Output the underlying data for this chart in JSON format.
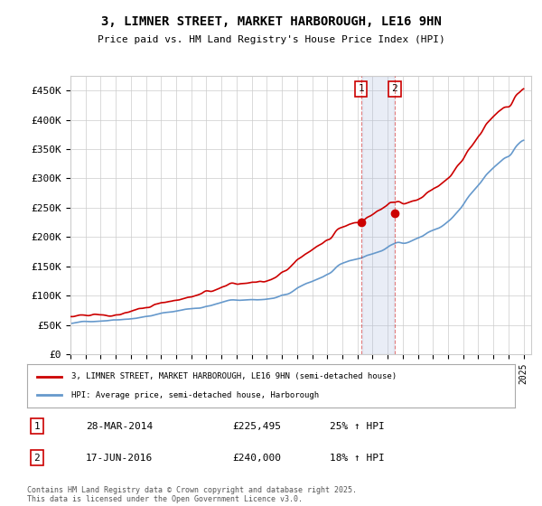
{
  "title_line1": "3, LIMNER STREET, MARKET HARBOROUGH, LE16 9HN",
  "title_line2": "Price paid vs. HM Land Registry's House Price Index (HPI)",
  "ylabel": "",
  "xlabel": "",
  "ylim": [
    0,
    475000
  ],
  "yticks": [
    0,
    50000,
    100000,
    150000,
    200000,
    250000,
    300000,
    350000,
    400000,
    450000
  ],
  "ytick_labels": [
    "£0",
    "£50K",
    "£100K",
    "£150K",
    "£200K",
    "£250K",
    "£300K",
    "£350K",
    "£400K",
    "£450K"
  ],
  "house_color": "#cc0000",
  "hpi_color": "#6699cc",
  "vline_color": "#cc0000",
  "vline_alpha": 0.5,
  "shade_color": "#aabbdd",
  "shade_alpha": 0.25,
  "transaction1": {
    "date_idx": 2014.24,
    "price": 225495,
    "label": "1"
  },
  "transaction2": {
    "date_idx": 2016.46,
    "price": 240000,
    "label": "2"
  },
  "legend_house": "3, LIMNER STREET, MARKET HARBOROUGH, LE16 9HN (semi-detached house)",
  "legend_hpi": "HPI: Average price, semi-detached house, Harborough",
  "table_rows": [
    [
      "1",
      "28-MAR-2014",
      "£225,495",
      "25% ↑ HPI"
    ],
    [
      "2",
      "17-JUN-2016",
      "£240,000",
      "18% ↑ HPI"
    ]
  ],
  "footnote": "Contains HM Land Registry data © Crown copyright and database right 2025.\nThis data is licensed under the Open Government Licence v3.0.",
  "background_color": "#ffffff"
}
